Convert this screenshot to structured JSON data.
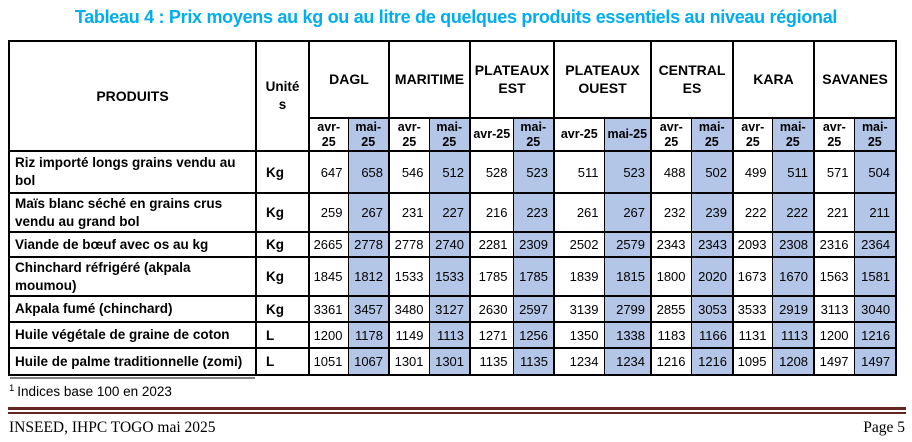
{
  "title": "Tableau 4 : Prix moyens au kg ou au litre de quelques produits essentiels au niveau régional",
  "colors": {
    "title_blue": "#00aeef",
    "highlight_mai": "#b4c6e7",
    "rule_maroon": "#642423",
    "footnote_separator_gray": "#7f7f7f",
    "border_black": "#000000"
  },
  "table": {
    "produits_header": "PRODUITS",
    "unites_header": "Unités",
    "regions": [
      {
        "name": "DAGL"
      },
      {
        "name": "MARITIME"
      },
      {
        "name": "PLATEAUX EST"
      },
      {
        "name": "PLATEAUX OUEST"
      },
      {
        "name": "CENTRALES"
      },
      {
        "name": "KARA"
      },
      {
        "name": "SAVANES"
      }
    ],
    "period_labels": {
      "avr": "avr-25",
      "mai": "mai-25"
    },
    "rows": [
      {
        "produit": "Riz importé longs grains vendu au bol",
        "unite": "Kg",
        "values": [
          647,
          658,
          546,
          512,
          528,
          523,
          511,
          523,
          488,
          502,
          499,
          511,
          571,
          504
        ]
      },
      {
        "produit": "Maïs blanc séché en grains crus vendu au grand bol",
        "unite": "Kg",
        "values": [
          259,
          267,
          231,
          227,
          216,
          223,
          261,
          267,
          232,
          239,
          222,
          222,
          221,
          211
        ]
      },
      {
        "produit": "Viande de bœuf avec os au kg",
        "unite": "Kg",
        "values": [
          2665,
          2778,
          2778,
          2740,
          2281,
          2309,
          2502,
          2579,
          2343,
          2343,
          2093,
          2308,
          2316,
          2364
        ]
      },
      {
        "produit": "Chinchard réfrigéré (akpala moumou)",
        "unite": "Kg",
        "values": [
          1845,
          1812,
          1533,
          1533,
          1785,
          1785,
          1839,
          1815,
          1800,
          2020,
          1673,
          1670,
          1563,
          1581
        ]
      },
      {
        "produit": "Akpala fumé (chinchard)",
        "unite": "Kg",
        "values": [
          3361,
          3457,
          3480,
          3127,
          2630,
          2597,
          3139,
          2799,
          2855,
          3053,
          3533,
          2919,
          3113,
          3040
        ]
      },
      {
        "produit": "Huile végétale de graine de coton",
        "unite": "L",
        "values": [
          1200,
          1178,
          1149,
          1113,
          1271,
          1256,
          1350,
          1338,
          1183,
          1166,
          1131,
          1113,
          1200,
          1216
        ]
      },
      {
        "produit": "Huile de palme traditionnelle (zomi)",
        "unite": "L",
        "values": [
          1051,
          1067,
          1301,
          1301,
          1135,
          1135,
          1234,
          1234,
          1216,
          1216,
          1095,
          1208,
          1497,
          1497
        ]
      }
    ]
  },
  "footnote": {
    "marker": "1",
    "text": "Indices base 100 en 2023"
  },
  "footer": {
    "left": "INSEED, IHPC TOGO mai 2025",
    "right": "Page 5"
  }
}
